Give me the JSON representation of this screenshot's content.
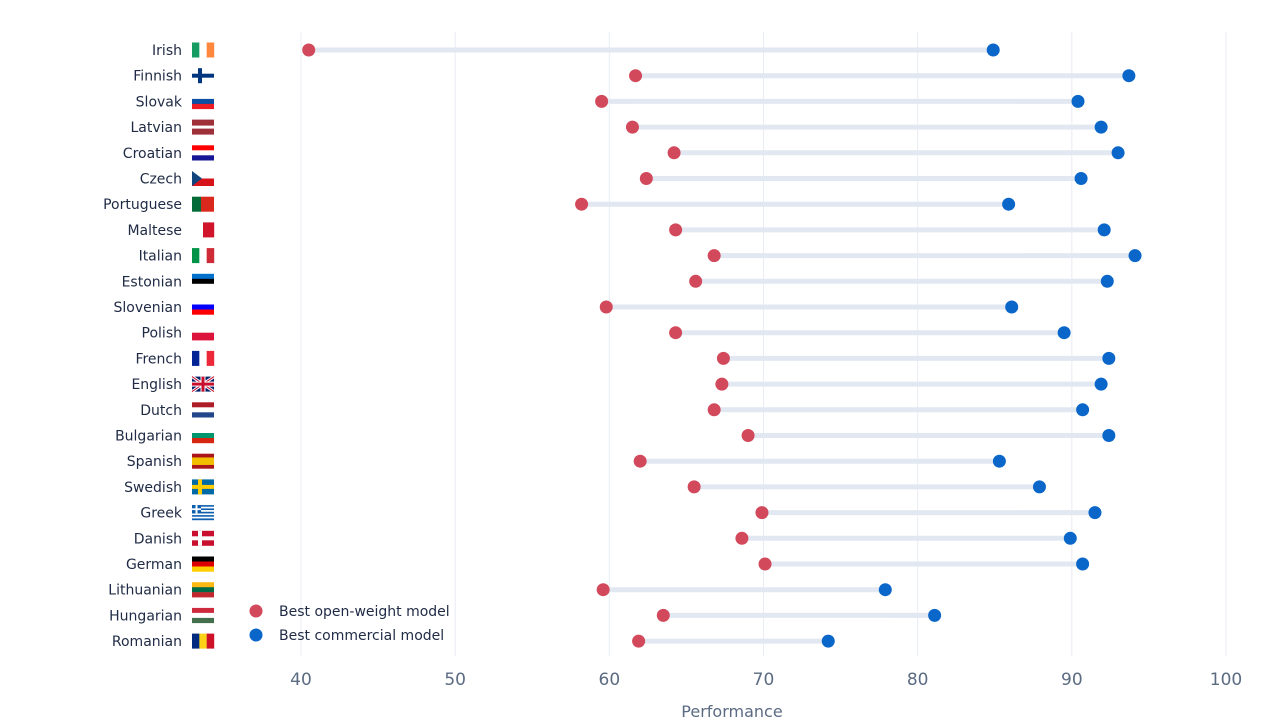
{
  "chart_data": {
    "type": "dumbbell",
    "xlabel": "Performance",
    "xlim": [
      40,
      100
    ],
    "xticks": [
      40,
      50,
      60,
      70,
      80,
      90,
      100
    ],
    "grid": "vertical",
    "legend_position": "bottom-left",
    "categories": [
      "Irish",
      "Finnish",
      "Slovak",
      "Latvian",
      "Croatian",
      "Czech",
      "Portuguese",
      "Maltese",
      "Italian",
      "Estonian",
      "Slovenian",
      "Polish",
      "French",
      "English",
      "Dutch",
      "Bulgarian",
      "Spanish",
      "Swedish",
      "Greek",
      "Danish",
      "German",
      "Lithuanian",
      "Hungarian",
      "Romanian"
    ],
    "series": [
      {
        "name": "Best open-weight model",
        "color": "#d1495b",
        "values": [
          40.5,
          61.7,
          59.5,
          61.5,
          64.2,
          62.4,
          58.2,
          64.3,
          66.8,
          65.6,
          59.8,
          64.3,
          67.4,
          67.3,
          66.8,
          69.0,
          62.0,
          65.5,
          69.9,
          68.6,
          70.1,
          59.6,
          63.5,
          61.9
        ]
      },
      {
        "name": "Best commercial model",
        "color": "#0a66c8",
        "values": [
          84.9,
          93.7,
          90.4,
          91.9,
          93.0,
          90.6,
          85.9,
          92.1,
          94.1,
          92.3,
          86.1,
          89.5,
          92.4,
          91.9,
          90.7,
          92.4,
          85.3,
          87.9,
          91.5,
          89.9,
          90.7,
          77.9,
          81.1,
          74.2
        ]
      }
    ],
    "flags": [
      "irish-flag",
      "finnish-flag",
      "slovak-flag",
      "latvian-flag",
      "croatian-flag",
      "czech-flag",
      "portuguese-flag",
      "maltese-flag",
      "italian-flag",
      "estonian-flag",
      "slovenian-flag",
      "polish-flag",
      "french-flag",
      "english-flag",
      "dutch-flag",
      "bulgarian-flag",
      "spanish-flag",
      "swedish-flag",
      "greek-flag",
      "danish-flag",
      "german-flag",
      "lithuanian-flag",
      "hungarian-flag",
      "romanian-flag"
    ],
    "colors": {
      "connector": "#e2e8f2",
      "grid": "#e8ecf3"
    }
  }
}
